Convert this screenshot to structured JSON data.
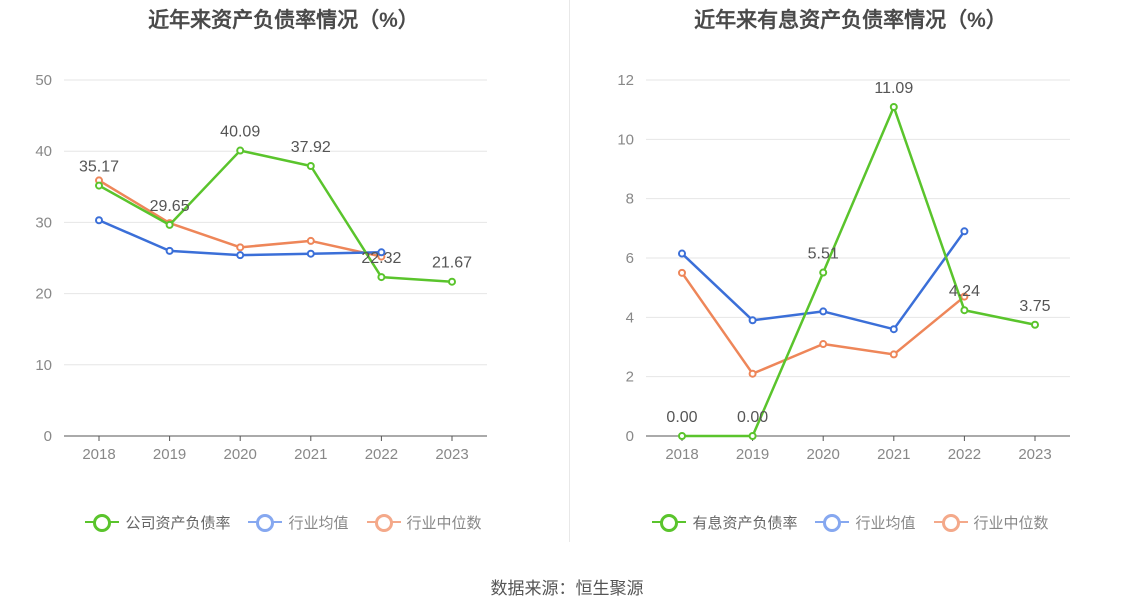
{
  "chart_data": [
    {
      "type": "line",
      "title": "近年来资产负债率情况（%）",
      "categories": [
        "2018",
        "2019",
        "2020",
        "2021",
        "2022",
        "2023"
      ],
      "ylim": [
        0,
        50
      ],
      "yticks": [
        0,
        10,
        20,
        30,
        40,
        50
      ],
      "grid": true,
      "legend_position": "bottom",
      "series": [
        {
          "name": "公司资产负债率",
          "color": "#5ac42c",
          "values": [
            35.17,
            29.65,
            40.09,
            37.92,
            22.32,
            21.67
          ],
          "labels": [
            "35.17",
            "29.65",
            "40.09",
            "37.92",
            "22.32",
            "21.67"
          ]
        },
        {
          "name": "行业均值",
          "color": "#3b6fd8",
          "values": [
            30.3,
            26.0,
            25.4,
            25.6,
            25.8,
            null
          ]
        },
        {
          "name": "行业中位数",
          "color": "#ee8659",
          "values": [
            35.9,
            29.9,
            26.5,
            27.4,
            25.2,
            null
          ]
        }
      ]
    },
    {
      "type": "line",
      "title": "近年来有息资产负债率情况（%）",
      "categories": [
        "2018",
        "2019",
        "2020",
        "2021",
        "2022",
        "2023"
      ],
      "ylim": [
        0,
        12
      ],
      "yticks": [
        0,
        2,
        4,
        6,
        8,
        10,
        12
      ],
      "grid": true,
      "legend_position": "bottom",
      "series": [
        {
          "name": "有息资产负债率",
          "color": "#5ac42c",
          "values": [
            0.0,
            0.0,
            5.51,
            11.09,
            4.24,
            3.75
          ],
          "labels": [
            "0.00",
            "0.00",
            "5.51",
            "11.09",
            "4.24",
            "3.75"
          ]
        },
        {
          "name": "行业均值",
          "color": "#3b6fd8",
          "values": [
            6.15,
            3.9,
            4.2,
            3.6,
            6.9,
            null
          ]
        },
        {
          "name": "行业中位数",
          "color": "#ee8659",
          "values": [
            5.5,
            2.1,
            3.1,
            2.75,
            4.7,
            null
          ]
        }
      ]
    }
  ],
  "source": "数据来源：恒生聚源",
  "legend_colors": {
    "main": "#5ac42c",
    "avg": "#86a8f0",
    "median": "#f4a98a"
  }
}
